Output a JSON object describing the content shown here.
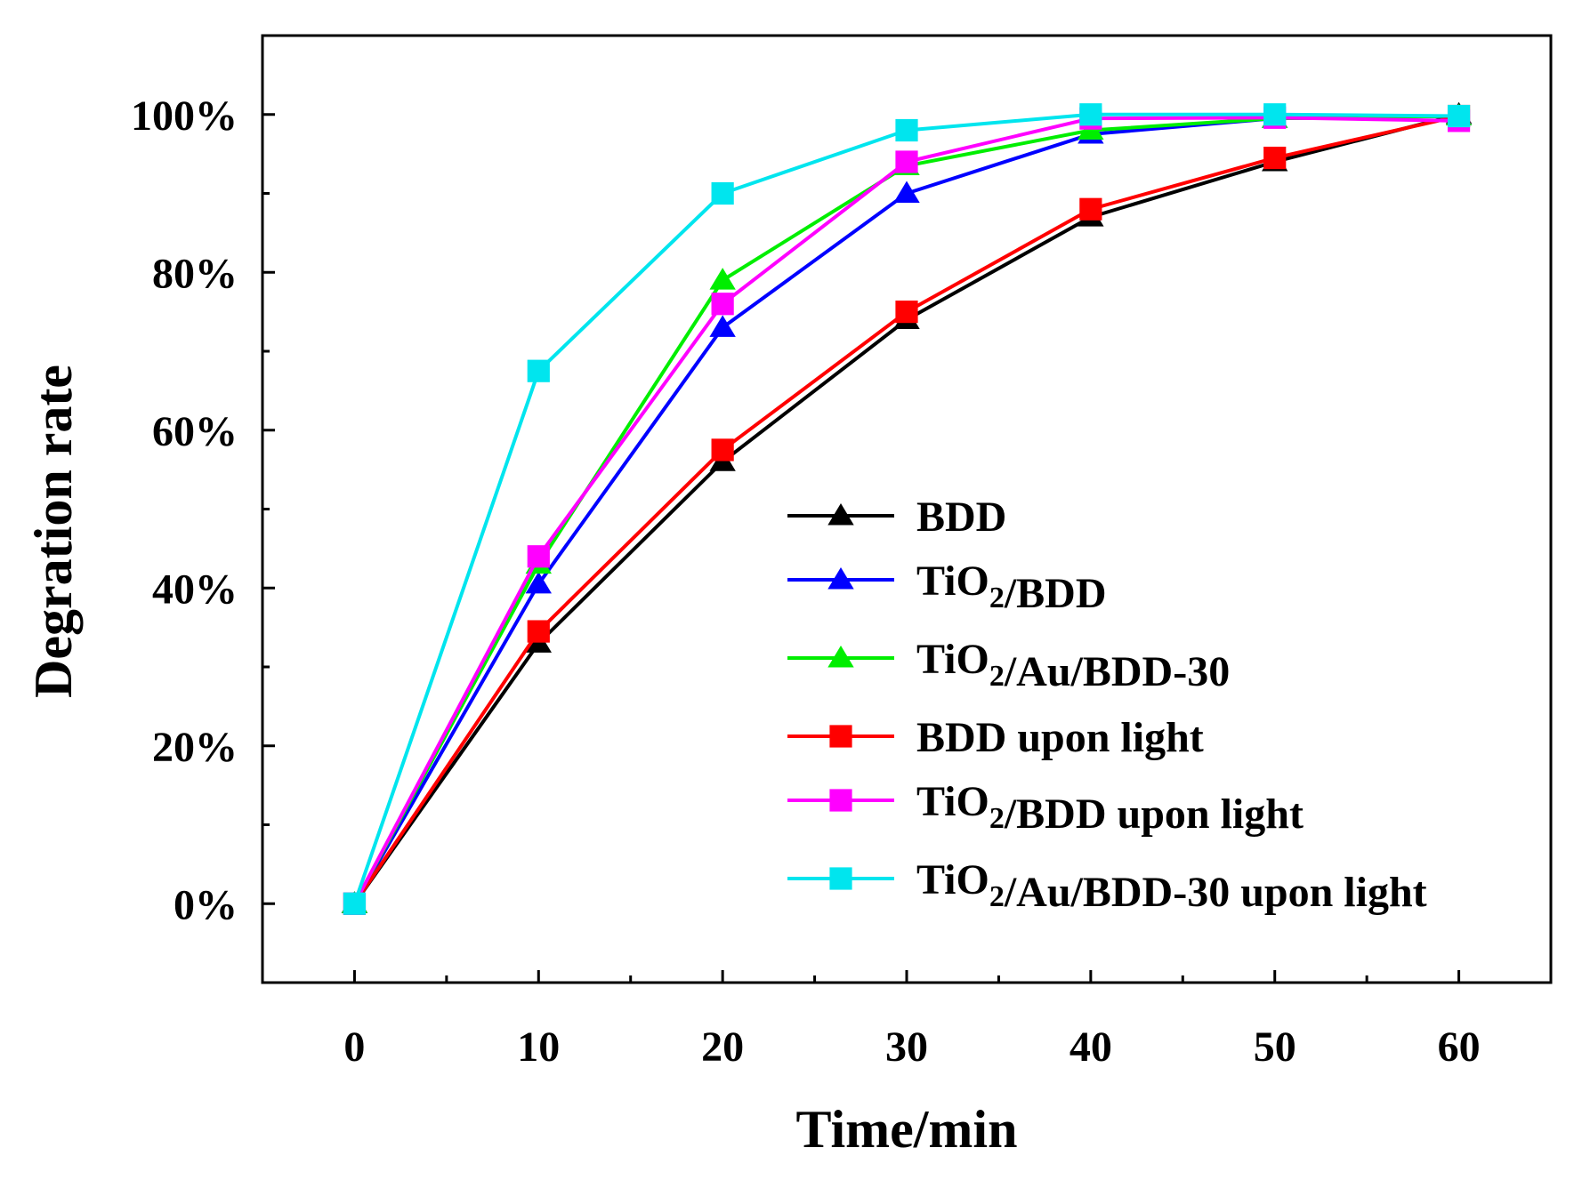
{
  "chart_data": {
    "type": "line",
    "title": "",
    "xlabel": "Time/min",
    "ylabel": "Degration rate",
    "x": [
      0,
      10,
      20,
      30,
      40,
      50,
      60
    ],
    "xlim": [
      -5,
      65
    ],
    "ylim": [
      -10,
      110
    ],
    "xticks": [
      0,
      10,
      20,
      30,
      40,
      50,
      60
    ],
    "xtick_labels": [
      "0",
      "10",
      "20",
      "30",
      "40",
      "50",
      "60"
    ],
    "yticks": [
      0,
      20,
      40,
      60,
      80,
      100
    ],
    "ytick_labels": [
      "0%",
      "20%",
      "40%",
      "60%",
      "80%",
      "100%"
    ],
    "grid": false,
    "legend_position": "bottom-right",
    "series": [
      {
        "name": "BDD",
        "label_parts": [
          {
            "text": "BDD"
          }
        ],
        "color": "#000000",
        "marker": "triangle",
        "values": [
          0,
          33,
          56,
          74,
          87,
          94,
          100
        ]
      },
      {
        "name": "TiO2/BDD",
        "label_parts": [
          {
            "text": "TiO"
          },
          {
            "text": "2",
            "sub": true
          },
          {
            "text": "/BDD"
          }
        ],
        "color": "#0000ff",
        "marker": "triangle",
        "values": [
          0,
          40.5,
          73,
          90,
          97.5,
          99.5,
          99.8
        ]
      },
      {
        "name": "TiO2/Au/BDD-30",
        "label_parts": [
          {
            "text": "TiO"
          },
          {
            "text": "2",
            "sub": true
          },
          {
            "text": "/Au/BDD-30"
          }
        ],
        "color": "#00ee00",
        "marker": "triangle",
        "values": [
          0,
          43,
          79,
          93.5,
          98,
          99.5,
          99.8
        ]
      },
      {
        "name": "BDD upon light",
        "label_parts": [
          {
            "text": "BDD upon light"
          }
        ],
        "color": "#ff0000",
        "marker": "square",
        "values": [
          0,
          34.5,
          57.5,
          75,
          88,
          94.5,
          99.8
        ]
      },
      {
        "name": "TiO2/BDD upon light",
        "label_parts": [
          {
            "text": "TiO"
          },
          {
            "text": "2",
            "sub": true
          },
          {
            "text": "/BDD upon light"
          }
        ],
        "color": "#ff00ff",
        "marker": "square",
        "values": [
          0,
          44,
          76,
          94,
          99.5,
          99.6,
          99.2
        ]
      },
      {
        "name": "TiO2/Au/BDD-30 upon light",
        "label_parts": [
          {
            "text": "TiO"
          },
          {
            "text": "2",
            "sub": true
          },
          {
            "text": "/Au/BDD-30 upon light"
          }
        ],
        "color": "#00e5ee",
        "marker": "square",
        "values": [
          0,
          67.5,
          90,
          98,
          100,
          100,
          99.8
        ]
      }
    ]
  }
}
